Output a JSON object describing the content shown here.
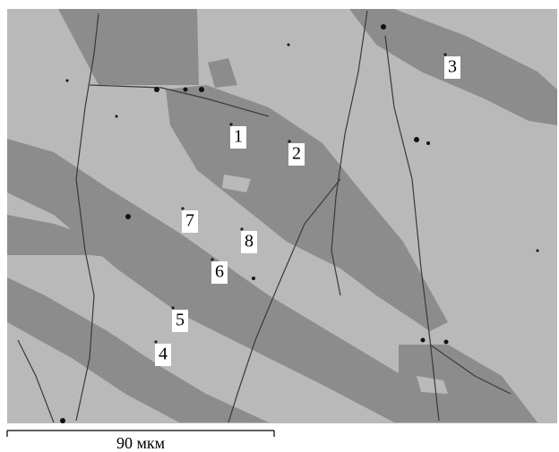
{
  "points": [
    {
      "label": "1"
    },
    {
      "label": "2"
    },
    {
      "label": "3"
    },
    {
      "label": "4"
    },
    {
      "label": "5"
    },
    {
      "label": "6"
    },
    {
      "label": "7"
    },
    {
      "label": "8"
    }
  ],
  "scale_bar": {
    "label": "90 мкм"
  }
}
